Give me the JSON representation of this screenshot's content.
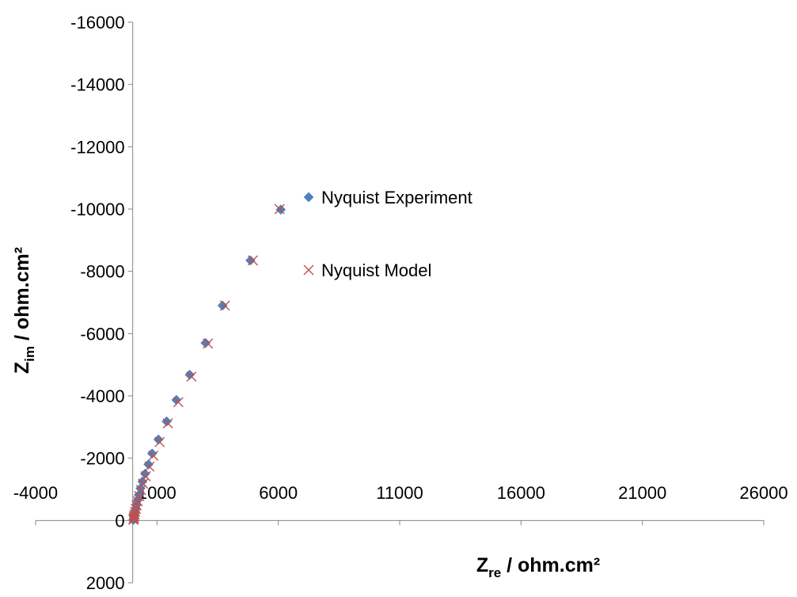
{
  "chart_data": {
    "type": "scatter",
    "title": "",
    "xlabel": "Z",
    "xlabel_sub": "re",
    "xlabel_rest": " / ohm.cm²",
    "ylabel": "Z",
    "ylabel_sub": "im",
    "ylabel_rest": " / ohm.cm²",
    "xlim": [
      -4000,
      26000
    ],
    "ylim": [
      2000,
      -16000
    ],
    "y_reversed": true,
    "x_ticks": [
      -4000,
      1000,
      6000,
      11000,
      16000,
      21000,
      26000
    ],
    "x_tick_labels": [
      "-4000",
      "1000",
      "6000",
      "11000",
      "16000",
      "21000",
      "26000"
    ],
    "y_ticks": [
      2000,
      0,
      -2000,
      -4000,
      -6000,
      -8000,
      -10000,
      -12000,
      -14000,
      -16000
    ],
    "y_tick_labels": [
      "2000",
      "0",
      "-2000",
      "-4000",
      "-6000",
      "-8000",
      "-10000",
      "-12000",
      "-14000",
      "-16000"
    ],
    "grid": false,
    "legend_position": "right",
    "series": [
      {
        "name": "Nyquist Experiment",
        "marker": "diamond",
        "color": "#4f81bd",
        "x": [
          30,
          40,
          50,
          60,
          80,
          100,
          130,
          160,
          200,
          250,
          320,
          400,
          510,
          650,
          800,
          1060,
          1400,
          1800,
          2350,
          3000,
          3700,
          4850,
          6100
        ],
        "y": [
          -20,
          -50,
          -90,
          -140,
          -200,
          -280,
          -380,
          -500,
          -650,
          -820,
          -1030,
          -1250,
          -1500,
          -1800,
          -2150,
          -2600,
          -3180,
          -3870,
          -4680,
          -5700,
          -6900,
          -8350,
          -9980
        ]
      },
      {
        "name": "Nyquist Model",
        "marker": "x",
        "color": "#c0504d",
        "x": [
          30,
          40,
          50,
          60,
          80,
          100,
          130,
          160,
          210,
          270,
          340,
          430,
          540,
          690,
          850,
          1110,
          1450,
          1880,
          2420,
          3100,
          3800,
          4950,
          6050
        ],
        "y": [
          -20,
          -50,
          -90,
          -140,
          -200,
          -280,
          -370,
          -480,
          -620,
          -780,
          -980,
          -1180,
          -1420,
          -1730,
          -2080,
          -2520,
          -3120,
          -3800,
          -4620,
          -5680,
          -6900,
          -8350,
          -10000
        ]
      }
    ]
  }
}
